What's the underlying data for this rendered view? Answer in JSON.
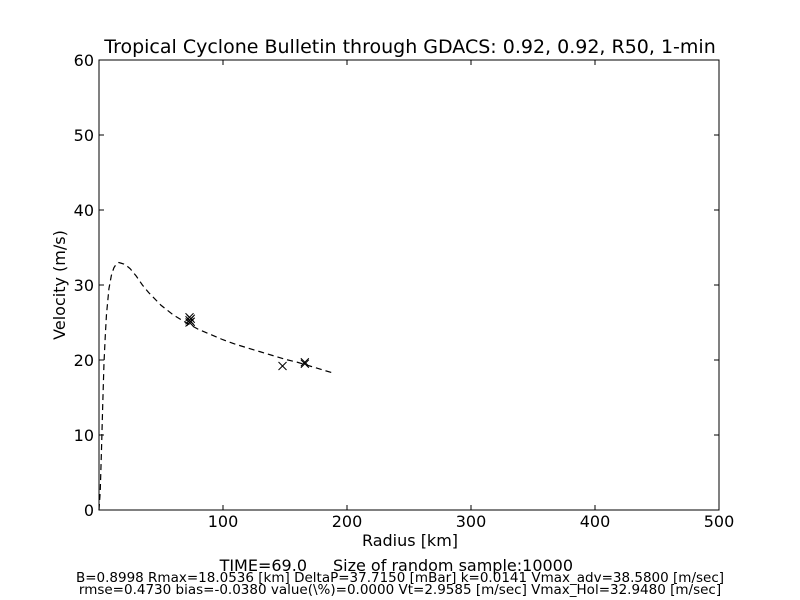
{
  "chart_data": {
    "type": "line",
    "title": "Tropical Cyclone Bulletin through GDACS: 0.92, 0.92, R50, 1-min",
    "xlabel": "Radius [km]",
    "ylabel": "Velocity (m/s)",
    "xlim": [
      0,
      500
    ],
    "ylim": [
      0,
      60
    ],
    "xticks": [
      100,
      200,
      300,
      400,
      500
    ],
    "yticks": [
      0,
      10,
      20,
      30,
      40,
      50,
      60
    ],
    "grid": false,
    "legend": "none",
    "series": [
      {
        "style": "dashed-line",
        "color": "#000000",
        "x": [
          0,
          1,
          2,
          3,
          4,
          5,
          6,
          8,
          10,
          12,
          14,
          16,
          18,
          20,
          22,
          25,
          30,
          35,
          40,
          50,
          60,
          70,
          80,
          90,
          100,
          110,
          120,
          130,
          140,
          150,
          160,
          170,
          180,
          188
        ],
        "y": [
          0,
          2.5,
          8,
          14,
          19.5,
          23,
          26,
          29.5,
          31.3,
          32.3,
          32.8,
          33,
          32.9,
          32.8,
          32.6,
          32.2,
          31.2,
          30,
          29,
          27.3,
          26,
          25,
          24.1,
          23.4,
          22.7,
          22.1,
          21.6,
          21.1,
          20.6,
          20.1,
          19.7,
          19.2,
          18.7,
          18.3
        ]
      },
      {
        "style": "x-markers",
        "color": "#000000",
        "x": [
          73,
          73,
          73,
          74,
          74,
          148,
          166,
          166
        ],
        "y": [
          25.7,
          25.3,
          25.0,
          25.5,
          25.1,
          19.2,
          19.7,
          19.5
        ]
      }
    ]
  },
  "footer": {
    "line1_time": "TIME=69.0",
    "line1_sample": "Size of random sample:10000",
    "line2": "B=0.8998 Rmax=18.0536 [km]  DeltaP=37.7150 [mBar] k=0.0141 Vmax_adv=38.5800 [m/sec]",
    "line3": "rmse=0.4730 bias=-0.0380 value(\\%)=0.0000 Vt=2.9585 [m/sec] Vmax_Hol=32.9480 [m/sec]"
  }
}
